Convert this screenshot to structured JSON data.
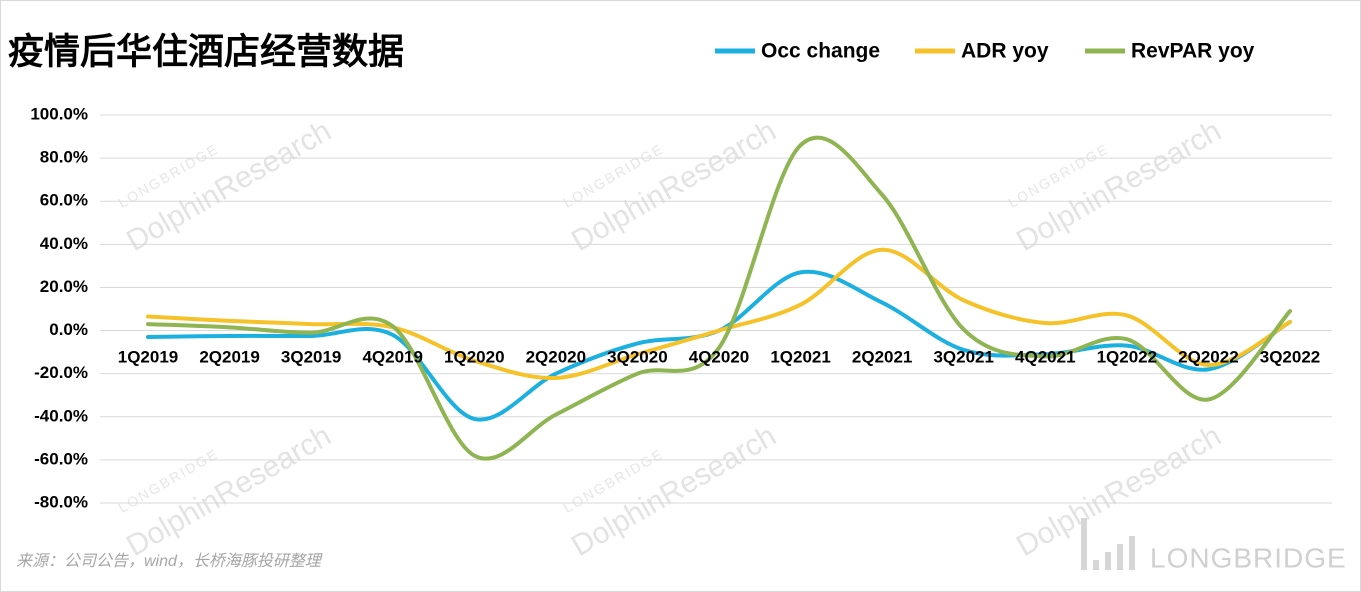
{
  "chart_data": {
    "type": "line",
    "title": "疫情后华住酒店经营数据",
    "source": "来源：公司公告，wind，长桥海豚投研整理",
    "watermark": "DolphinResearch",
    "watermark_brand": "LONGBRIDGE",
    "categories": [
      "1Q2019",
      "2Q2019",
      "3Q2019",
      "4Q2019",
      "1Q2020",
      "2Q2020",
      "3Q2020",
      "4Q2020",
      "1Q2021",
      "2Q2021",
      "3Q2021",
      "4Q2021",
      "1Q2022",
      "2Q2022",
      "3Q2022"
    ],
    "series": [
      {
        "name": "Occ change",
        "color": "#1bb0e0",
        "values": [
          -3,
          -2.5,
          -2.5,
          -2,
          -41,
          -20,
          -6,
          0,
          27,
          13,
          -9,
          -11,
          -7,
          -18,
          4
        ]
      },
      {
        "name": "ADR yoy",
        "color": "#f5c22a",
        "values": [
          6.5,
          4.5,
          3,
          1.5,
          -14,
          -22,
          -11,
          0,
          12,
          37.5,
          14,
          3.5,
          7,
          -16,
          4
        ]
      },
      {
        "name": "RevPAR yoy",
        "color": "#8fb452",
        "values": [
          3,
          1.5,
          -1,
          2,
          -58,
          -39,
          -20,
          -8,
          86,
          63,
          0.5,
          -12,
          -4,
          -32,
          9
        ]
      }
    ],
    "ylim": [
      -80,
      100
    ],
    "yticks": [
      {
        "value": -80,
        "label": "-80.0%"
      },
      {
        "value": -60,
        "label": "-60.0%"
      },
      {
        "value": -40,
        "label": "-40.0%"
      },
      {
        "value": -20,
        "label": "-20.0%"
      },
      {
        "value": 0,
        "label": "0.0%"
      },
      {
        "value": 20,
        "label": "20.0%"
      },
      {
        "value": 40,
        "label": "40.0%"
      },
      {
        "value": 60,
        "label": "60.0%"
      },
      {
        "value": 80,
        "label": "80.0%"
      },
      {
        "value": 100,
        "label": "100.0%"
      }
    ],
    "grid": true
  }
}
